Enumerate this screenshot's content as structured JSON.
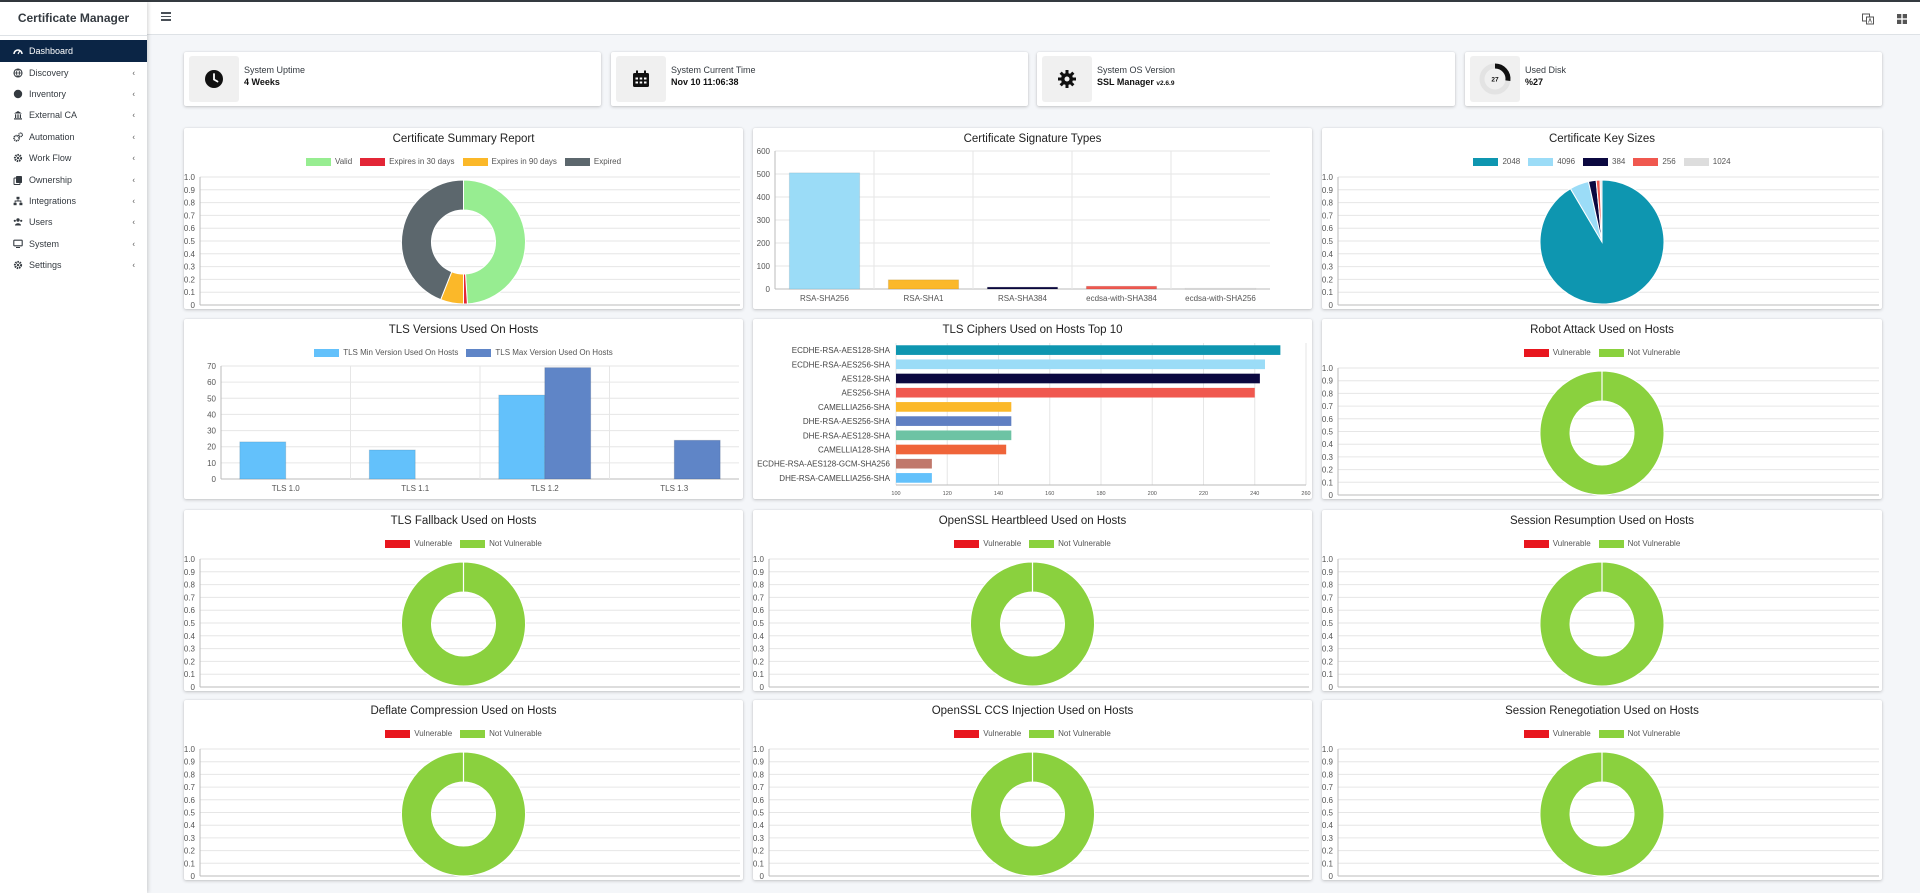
{
  "app": {
    "title": "Certificate Manager"
  },
  "sidebar": {
    "items": [
      {
        "label": "Dashboard",
        "icon": "dashboard-icon",
        "active": true
      },
      {
        "label": "Discovery",
        "icon": "globe-icon"
      },
      {
        "label": "Inventory",
        "icon": "circle-icon"
      },
      {
        "label": "External CA",
        "icon": "bank-icon"
      },
      {
        "label": "Automation",
        "icon": "cogs-icon"
      },
      {
        "label": "Work Flow",
        "icon": "gear-icon"
      },
      {
        "label": "Ownership",
        "icon": "copy-icon"
      },
      {
        "label": "Integrations",
        "icon": "network-icon"
      },
      {
        "label": "Users",
        "icon": "users-icon"
      },
      {
        "label": "System",
        "icon": "monitor-icon"
      },
      {
        "label": "Settings",
        "icon": "gear-icon"
      }
    ]
  },
  "info": {
    "uptime": {
      "label": "System Uptime",
      "value": "4 Weeks"
    },
    "time": {
      "label": "System Current Time",
      "value": "Nov 10 11:06:38"
    },
    "os": {
      "label": "System OS Version",
      "value": "SSL Manager",
      "version": "v2.6.9"
    },
    "disk": {
      "label": "Used Disk",
      "value": "%27",
      "gauge": "27",
      "percent": 27
    }
  },
  "colors": {
    "green": "#8ad13e",
    "red": "#e8161e",
    "teal": "#0e96b0",
    "navy": "#0b2545"
  },
  "chart_data": [
    {
      "id": "cert_summary",
      "type": "doughnut",
      "title": "Certificate Summary Report",
      "labels": [
        "Valid",
        "Expires in 30 days",
        "Expires in 90 days",
        "Expired"
      ],
      "values": [
        49,
        1,
        6,
        44
      ],
      "colors": [
        "#97ed91",
        "#e32636",
        "#fbb829",
        "#5c676d"
      ],
      "yticks": [
        "1.0",
        "0.9",
        "0.8",
        "0.7",
        "0.6",
        "0.5",
        "0.4",
        "0.3",
        "0.2",
        "0.1",
        "0"
      ]
    },
    {
      "id": "sig_types",
      "type": "bar",
      "title": "Certificate Signature Types",
      "categories": [
        "RSA-SHA256",
        "RSA-SHA1",
        "RSA-SHA384",
        "ecdsa-with-SHA384",
        "ecdsa-with-SHA256"
      ],
      "values": [
        505,
        40,
        8,
        12,
        3
      ],
      "colors": [
        "#9bdcf7",
        "#fbb829",
        "#0b0840",
        "#f0584f",
        "#dddddd"
      ],
      "ylim": [
        0,
        600
      ],
      "yticks": [
        "600",
        "500",
        "400",
        "300",
        "200",
        "100",
        "0"
      ]
    },
    {
      "id": "key_sizes",
      "type": "pie",
      "title": "Certificate Key Sizes",
      "labels": [
        "2048",
        "4096",
        "384",
        "256",
        "1024"
      ],
      "values": [
        91.5,
        5,
        2,
        1,
        0.5
      ],
      "colors": [
        "#0e96b0",
        "#9bdcf7",
        "#0b0840",
        "#f0584f",
        "#dddddd"
      ],
      "yticks": [
        "1.0",
        "0.9",
        "0.8",
        "0.7",
        "0.6",
        "0.5",
        "0.4",
        "0.3",
        "0.2",
        "0.1",
        "0"
      ]
    },
    {
      "id": "tls_versions",
      "type": "bar",
      "title": "TLS Versions Used On Hosts",
      "categories": [
        "TLS 1.0",
        "TLS 1.1",
        "TLS 1.2",
        "TLS 1.3"
      ],
      "series": [
        {
          "name": "TLS Min Version Used On Hosts",
          "values": [
            23,
            18,
            52,
            0
          ],
          "color": "#63c1fb"
        },
        {
          "name": "TLS Max Version Used On Hosts",
          "values": [
            0,
            0,
            69,
            24
          ],
          "color": "#5f85c7"
        }
      ],
      "ylim": [
        0,
        70
      ],
      "yticks": [
        "70",
        "60",
        "50",
        "40",
        "30",
        "20",
        "10",
        "0"
      ]
    },
    {
      "id": "tls_ciphers",
      "type": "hbar",
      "title": "TLS Ciphers Used on Hosts Top 10",
      "categories": [
        "ECDHE-RSA-AES128-SHA",
        "ECDHE-RSA-AES256-SHA",
        "AES128-SHA",
        "AES256-SHA",
        "CAMELLIA256-SHA",
        "DHE-RSA-AES256-SHA",
        "DHE-RSA-AES128-SHA",
        "CAMELLIA128-SHA",
        "ECDHE-RSA-AES128-GCM-SHA256",
        "DHE-RSA-CAMELLIA256-SHA"
      ],
      "values": [
        250,
        244,
        242,
        240,
        145,
        145,
        145,
        143,
        114,
        114
      ],
      "colors": [
        "#0e96b0",
        "#9bdcf7",
        "#0b0840",
        "#f0584f",
        "#fbb829",
        "#5f7fc2",
        "#6dc3a4",
        "#ef6439",
        "#c0786b",
        "#63c1fb"
      ],
      "xlim": [
        100,
        260
      ],
      "xticks": [
        "100",
        "120",
        "140",
        "160",
        "180",
        "200",
        "220",
        "240",
        "260"
      ]
    },
    {
      "id": "robot",
      "type": "doughnut",
      "title": "Robot Attack Used on Hosts",
      "labels": [
        "Vulnerable",
        "Not Vulnerable"
      ],
      "values": [
        0,
        100
      ],
      "colors": [
        "#e8161e",
        "#8ad13e"
      ],
      "yticks": [
        "1.0",
        "0.9",
        "0.8",
        "0.7",
        "0.6",
        "0.5",
        "0.4",
        "0.3",
        "0.2",
        "0.1",
        "0"
      ]
    },
    {
      "id": "fallback",
      "type": "doughnut",
      "title": "TLS Fallback Used on Hosts",
      "labels": [
        "Vulnerable",
        "Not Vulnerable"
      ],
      "values": [
        0,
        100
      ],
      "colors": [
        "#e8161e",
        "#8ad13e"
      ],
      "yticks": [
        "1.0",
        "0.9",
        "0.8",
        "0.7",
        "0.6",
        "0.5",
        "0.4",
        "0.3",
        "0.2",
        "0.1",
        "0"
      ]
    },
    {
      "id": "heartbleed",
      "type": "doughnut",
      "title": "OpenSSL Heartbleed Used on Hosts",
      "labels": [
        "Vulnerable",
        "Not Vulnerable"
      ],
      "values": [
        0,
        100
      ],
      "colors": [
        "#e8161e",
        "#8ad13e"
      ],
      "yticks": [
        "1.0",
        "0.9",
        "0.8",
        "0.7",
        "0.6",
        "0.5",
        "0.4",
        "0.3",
        "0.2",
        "0.1",
        "0"
      ]
    },
    {
      "id": "resumption",
      "type": "doughnut",
      "title": "Session Resumption Used on Hosts",
      "labels": [
        "Vulnerable",
        "Not Vulnerable"
      ],
      "values": [
        0,
        100
      ],
      "colors": [
        "#e8161e",
        "#8ad13e"
      ],
      "yticks": [
        "1.0",
        "0.9",
        "0.8",
        "0.7",
        "0.6",
        "0.5",
        "0.4",
        "0.3",
        "0.2",
        "0.1",
        "0"
      ]
    },
    {
      "id": "deflate",
      "type": "doughnut",
      "title": "Deflate Compression Used on Hosts",
      "labels": [
        "Vulnerable",
        "Not Vulnerable"
      ],
      "values": [
        0,
        100
      ],
      "colors": [
        "#e8161e",
        "#8ad13e"
      ],
      "yticks": [
        "1.0",
        "0.9",
        "0.8",
        "0.7",
        "0.6",
        "0.5",
        "0.4",
        "0.3",
        "0.2",
        "0.1",
        "0"
      ]
    },
    {
      "id": "ccs",
      "type": "doughnut",
      "title": "OpenSSL CCS Injection Used on Hosts",
      "labels": [
        "Vulnerable",
        "Not Vulnerable"
      ],
      "values": [
        0,
        100
      ],
      "colors": [
        "#e8161e",
        "#8ad13e"
      ],
      "yticks": [
        "1.0",
        "0.9",
        "0.8",
        "0.7",
        "0.6",
        "0.5",
        "0.4",
        "0.3",
        "0.2",
        "0.1",
        "0"
      ]
    },
    {
      "id": "renegotiation",
      "type": "doughnut",
      "title": "Session Renegotiation Used on Hosts",
      "labels": [
        "Vulnerable",
        "Not Vulnerable"
      ],
      "values": [
        0,
        100
      ],
      "colors": [
        "#e8161e",
        "#8ad13e"
      ],
      "yticks": [
        "1.0",
        "0.9",
        "0.8",
        "0.7",
        "0.6",
        "0.5",
        "0.4",
        "0.3",
        "0.2",
        "0.1",
        "0"
      ]
    }
  ]
}
